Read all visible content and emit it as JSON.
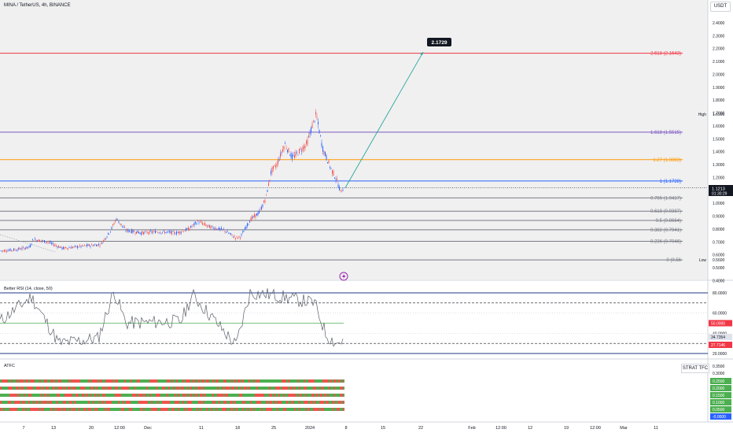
{
  "header": {
    "symbol": "MINA / TetherUS, 4h, BINANCE",
    "currency": "USDT"
  },
  "price_axis": {
    "ticks": [
      "2.4000",
      "2.3000",
      "2.2000",
      "2.1000",
      "2.0000",
      "1.9000",
      "1.8000",
      "1.7000",
      "1.6000",
      "1.5000",
      "1.4000",
      "1.3000",
      "1.2000",
      "1.1000",
      "1.0000",
      "0.9000",
      "0.8000",
      "0.7000",
      "0.6000",
      "0.5000",
      "0.4000"
    ],
    "high_label": "High",
    "high_value": "1.6900",
    "low_label": "Low",
    "low_value": "0.5600",
    "last_price": "1.1213",
    "countdown": "01:30:29"
  },
  "fib_levels": [
    {
      "label": "2.618 (2.1643)",
      "value": 2.1643,
      "color": "#f23645"
    },
    {
      "label": "1.618 (1.5515)",
      "value": 1.5515,
      "color": "#7e57c2"
    },
    {
      "label": "1.27 (1.3383)",
      "value": 1.3383,
      "color": "#ff9800"
    },
    {
      "label": "1 (1.1728)",
      "value": 1.1728,
      "color": "#2962ff"
    },
    {
      "label": "0.786 (1.0417)",
      "value": 1.0417,
      "color": "#787b86"
    },
    {
      "label": "0.618 (0.9387)",
      "value": 0.9387,
      "color": "#787b86"
    },
    {
      "label": "0.5 (0.8664)",
      "value": 0.8664,
      "color": "#787b86"
    },
    {
      "label": "0.382 (0.7941)",
      "value": 0.7941,
      "color": "#787b86"
    },
    {
      "label": "0.236 (0.7046)",
      "value": 0.7046,
      "color": "#787b86"
    },
    {
      "label": "0 (0.56",
      "value": 0.56,
      "color": "#787b86"
    }
  ],
  "target_label": "2.1729",
  "rsi": {
    "title": "Better RSI (14, close, 50)",
    "ticks": [
      "80.0000",
      "60.0000",
      "40.0000",
      "20.0000"
    ],
    "midline_value": "50.0000",
    "current_value": "34.7354",
    "lower_value": "27.7146"
  },
  "atfc": {
    "title": "ATFC",
    "strat_label": "STRAT TFC",
    "ticks": [
      "0.3500",
      "0.3000"
    ],
    "badges": [
      "0.2500",
      "0.2000",
      "0.1500",
      "0.1000",
      "0.0500",
      "-0.0000"
    ]
  },
  "time_axis": [
    "7",
    "13",
    "20",
    "12:00",
    "Dec",
    "11",
    "18",
    "25",
    "2024",
    "8",
    "15",
    "22",
    "Feb",
    "12:00",
    "12",
    "19",
    "12:00",
    "Mar",
    "11"
  ],
  "chart_data": {
    "type": "line",
    "title": "MINA / TetherUS, 4h, BINANCE",
    "ylim": [
      0.4,
      2.45
    ],
    "x": [
      "7",
      "13",
      "20",
      "12:00",
      "Dec",
      "11",
      "18",
      "25",
      "2024",
      "8"
    ],
    "series": [
      {
        "name": "",
        "values": [
          0.63,
          0.66,
          0.65,
          0.88,
          0.76,
          0.79,
          0.72,
          1.5,
          1.69,
          1.12
        ]
      }
    ],
    "projection": {
      "from": 1.12,
      "to": 2.1729,
      "label": "2.1729"
    }
  }
}
